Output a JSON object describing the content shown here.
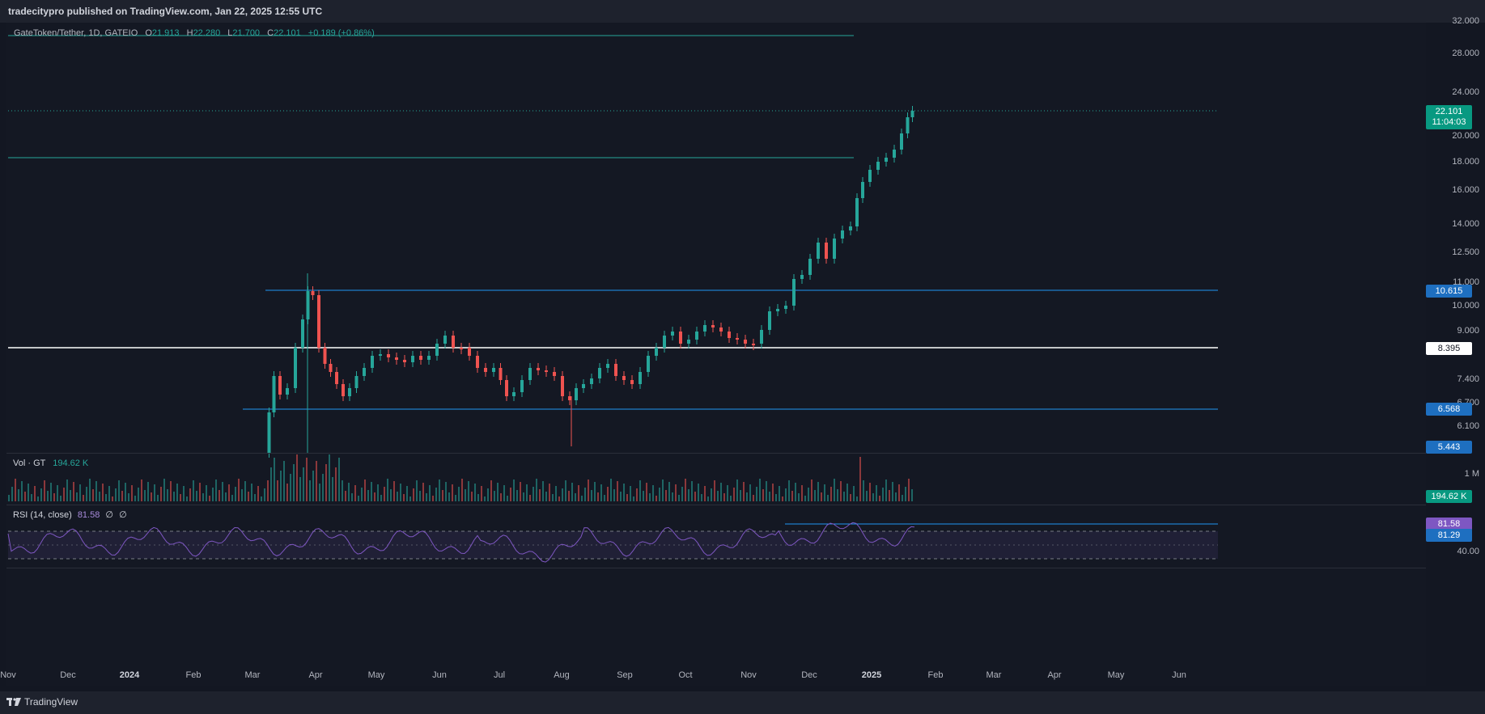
{
  "header": {
    "publish_text": "tradecitypro published on TradingView.com, Jan 22, 2025 12:55 UTC"
  },
  "legend": {
    "symbol": "GateToken/Tether, 1D, GATEIO",
    "o_label": "O",
    "o": "21.913",
    "h_label": "H",
    "h": "22.280",
    "l_label": "L",
    "l": "21.700",
    "c_label": "C",
    "c": "22.101",
    "change": "+0.189 (+0.86%)"
  },
  "price_axis": [
    "32.000",
    "28.000",
    "24.000",
    "20.000",
    "18.000",
    "16.000",
    "14.000",
    "12.500",
    "11.000",
    "10.000",
    "9.000",
    "7.400",
    "6.700",
    "6.100"
  ],
  "price_tags": {
    "last_price": "22.101",
    "countdown": "11:04:03",
    "level_upper": "10.615",
    "level_mid": "8.395",
    "level_lower": "6.568",
    "level_low": "5.443"
  },
  "volume_pane": {
    "name": "Vol · GT",
    "value": "194.62 K",
    "axis_label": "1 M",
    "tag": "194.62 K"
  },
  "rsi_pane": {
    "name": "RSI (14, close)",
    "value": "81.58",
    "extra1": "∅",
    "extra2": "∅",
    "tag_rsi": "81.58",
    "tag_ma": "81.29",
    "axis_label": "40.00"
  },
  "time_axis": [
    "Nov",
    "Dec",
    "2024",
    "Feb",
    "Mar",
    "Apr",
    "May",
    "Jun",
    "Jul",
    "Aug",
    "Sep",
    "Oct",
    "Nov",
    "Dec",
    "2025",
    "Feb",
    "Mar",
    "Apr",
    "May",
    "Jun"
  ],
  "footer": {
    "logo_text": "TradingView"
  },
  "colors": {
    "up": "#26a69a",
    "down": "#ef5350",
    "level_line": "#2196f3",
    "rsi": "#7e57c2",
    "background": "#131722"
  }
}
